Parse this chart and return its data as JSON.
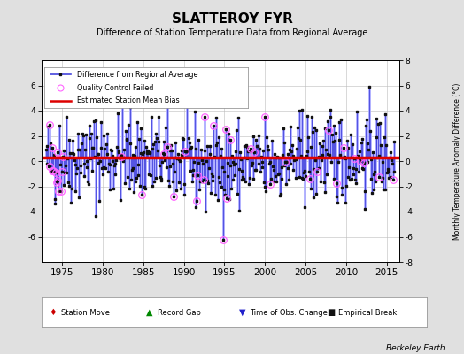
{
  "title": "SLATTEROY FYR",
  "subtitle": "Difference of Station Temperature Data from Regional Average",
  "ylabel": "Monthly Temperature Anomaly Difference (°C)",
  "xlabel_years": [
    1975,
    1980,
    1985,
    1990,
    1995,
    2000,
    2005,
    2010,
    2015
  ],
  "ylim": [
    -8,
    8
  ],
  "yticks_left": [
    -6,
    -4,
    -2,
    0,
    2,
    4,
    6
  ],
  "yticks_right": [
    -8,
    -6,
    -4,
    -2,
    0,
    2,
    4,
    6,
    8
  ],
  "xlim_start": 1972.5,
  "xlim_end": 2016.5,
  "mean_bias": 0.3,
  "station_mean_bias_color": "#dd0000",
  "line_color": "#4444dd",
  "line_fill_color": "#aaaaff",
  "marker_color": "#111111",
  "qc_failed_color": "#ff66ff",
  "background_color": "#e0e0e0",
  "plot_bg_color": "#ffffff",
  "grid_color": "#bbbbbb",
  "legend1_items": [
    "Difference from Regional Average",
    "Quality Control Failed",
    "Estimated Station Mean Bias"
  ],
  "legend2_items": [
    "Station Move",
    "Record Gap",
    "Time of Obs. Change",
    "Empirical Break"
  ],
  "watermark": "Berkeley Earth",
  "seed": 12345,
  "start_year": 1973.0,
  "end_year": 2015.92
}
